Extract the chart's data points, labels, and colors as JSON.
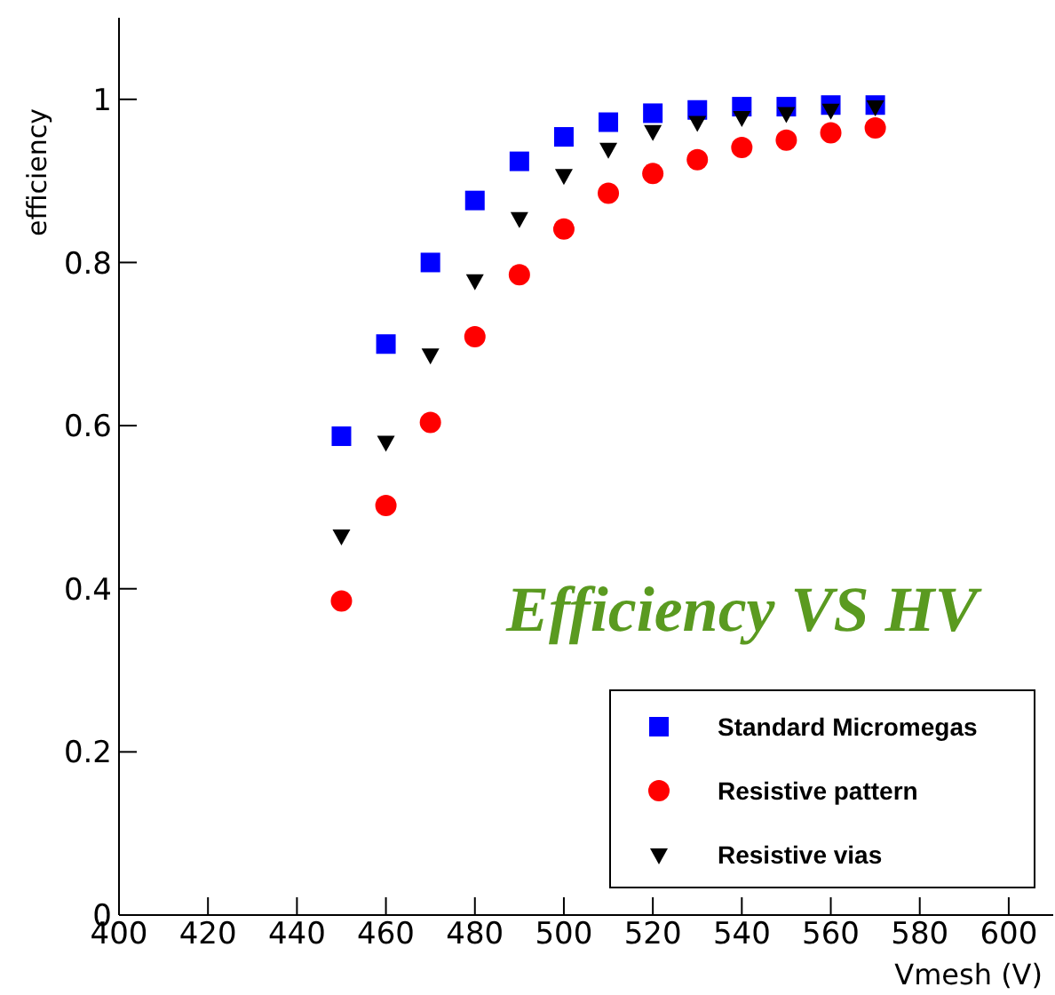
{
  "chart_data": {
    "type": "scatter",
    "title": "Efficiency VS HV",
    "xlabel": "Vmesh (V)",
    "ylabel": "efficiency",
    "x": [
      450,
      460,
      470,
      480,
      490,
      500,
      510,
      520,
      530,
      540,
      550,
      560,
      570
    ],
    "series": [
      {
        "name": "Standard Micromegas",
        "color": "#0000ff",
        "marker": "square",
        "values": [
          0.587,
          0.7,
          0.8,
          0.876,
          0.924,
          0.954,
          0.972,
          0.983,
          0.987,
          0.991,
          0.991,
          0.993,
          0.993
        ]
      },
      {
        "name": "Resistive pattern",
        "color": "#ff0000",
        "marker": "circle",
        "values": [
          0.385,
          0.502,
          0.604,
          0.709,
          0.785,
          0.841,
          0.885,
          0.909,
          0.926,
          0.941,
          0.95,
          0.959,
          0.965
        ]
      },
      {
        "name": "Resistive vias",
        "color": "#000000",
        "marker": "triangle",
        "values": [
          0.465,
          0.58,
          0.687,
          0.778,
          0.854,
          0.907,
          0.939,
          0.961,
          0.972,
          0.978,
          0.983,
          0.987,
          0.991
        ]
      }
    ],
    "xlim": [
      400,
      610
    ],
    "xticks": [
      400,
      420,
      440,
      460,
      480,
      500,
      520,
      540,
      560,
      580,
      600
    ],
    "ylim": [
      0,
      1.1
    ],
    "yticks": [
      0,
      0.2,
      0.4,
      0.6,
      0.8,
      1
    ],
    "grid": false,
    "legend": "bottom right"
  }
}
